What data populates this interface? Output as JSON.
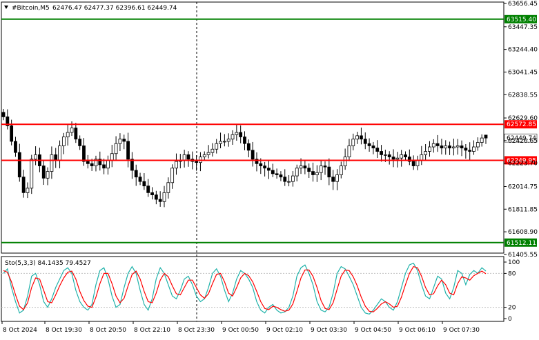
{
  "header": {
    "arrow_icon": "triangle-down-icon",
    "symbol": "#Bitcoin,M5",
    "ohlc": "62476.47 62477.37 62396.61 62449.74"
  },
  "price_axis": {
    "ticks": [
      "63656.45",
      "63447.35",
      "63244.40",
      "63041.45",
      "62838.55",
      "62629.60",
      "62426.65",
      "62223.70",
      "62014.75",
      "61811.85",
      "61608.90",
      "61405.55"
    ]
  },
  "levels": [
    {
      "name": "resistance-upper",
      "price": "63515.40",
      "color": "#008000"
    },
    {
      "name": "resistance",
      "price": "62572.85",
      "color": "#ff0000"
    },
    {
      "name": "support",
      "price": "62249.95",
      "color": "#ff0000"
    },
    {
      "name": "support-lower",
      "price": "61512.11",
      "color": "#008000"
    }
  ],
  "current_price": "62449.74",
  "stochastic": {
    "label": "Sto(5,3,3) 84.1435 79.4527",
    "ticks": [
      "100",
      "80",
      "20",
      "0"
    ],
    "main_color": "#20b2aa",
    "signal_color": "#ff0000"
  },
  "time_axis": {
    "ticks": [
      "8 Oct 2024",
      "8 Oct 19:30",
      "8 Oct 20:50",
      "8 Oct 22:10",
      "8 Oct 23:30",
      "9 Oct 00:50",
      "9 Oct 02:10",
      "9 Oct 03:30",
      "9 Oct 04:50",
      "9 Oct 06:10",
      "9 Oct 07:30"
    ]
  },
  "chart_data": {
    "type": "candlestick",
    "symbol": "#Bitcoin",
    "timeframe": "M5",
    "ylim": [
      61405.55,
      63656.45
    ],
    "last_candle": {
      "open": 62476.47,
      "high": 62477.37,
      "low": 62396.61,
      "close": 62449.74
    },
    "horizontal_levels": [
      63515.4,
      62572.85,
      62249.95,
      61512.11
    ],
    "close_series": [
      62640,
      62560,
      62420,
      62320,
      62100,
      61960,
      62000,
      62260,
      62300,
      62200,
      62090,
      62150,
      62300,
      62250,
      62380,
      62460,
      62500,
      62540,
      62440,
      62380,
      62240,
      62220,
      62200,
      62260,
      62210,
      62180,
      62250,
      62310,
      62400,
      62440,
      62420,
      62260,
      62160,
      62100,
      62060,
      62020,
      61960,
      61940,
      61900,
      61880,
      61960,
      62050,
      62180,
      62240,
      62250,
      62300,
      62260,
      62240,
      62230,
      62280,
      62300,
      62320,
      62350,
      62400,
      62420,
      62420,
      62440,
      62480,
      62500,
      62460,
      62400,
      62340,
      62260,
      62220,
      62200,
      62180,
      62160,
      62130,
      62120,
      62100,
      62060,
      62060,
      62110,
      62180,
      62200,
      62180,
      62150,
      62120,
      62140,
      62200,
      62190,
      62100,
      62060,
      62120,
      62200,
      62280,
      62380,
      62440,
      62470,
      62440,
      62400,
      62380,
      62360,
      62330,
      62300,
      62300,
      62280,
      62260,
      62270,
      62300,
      62280,
      62240,
      62200,
      62250,
      62300,
      62330,
      62370,
      62400,
      62380,
      62360,
      62380,
      62360,
      62370,
      62380,
      62360,
      62340,
      62330,
      62370,
      62410,
      62450,
      62449.74
    ],
    "stochastic": {
      "ylim": [
        0,
        100
      ],
      "levels": [
        20,
        80
      ],
      "main_last": 84.1435,
      "signal_last": 79.4527,
      "main": [
        80,
        88,
        55,
        30,
        10,
        15,
        40,
        75,
        80,
        60,
        30,
        20,
        35,
        55,
        70,
        85,
        90,
        80,
        50,
        30,
        20,
        15,
        25,
        60,
        85,
        90,
        70,
        40,
        20,
        25,
        55,
        80,
        92,
        80,
        50,
        25,
        15,
        35,
        70,
        90,
        80,
        60,
        40,
        35,
        50,
        70,
        75,
        60,
        40,
        30,
        35,
        55,
        80,
        88,
        75,
        50,
        30,
        45,
        70,
        85,
        80,
        70,
        55,
        30,
        15,
        10,
        20,
        25,
        15,
        10,
        12,
        20,
        40,
        75,
        90,
        95,
        80,
        60,
        30,
        15,
        12,
        20,
        45,
        80,
        92,
        88,
        75,
        60,
        40,
        20,
        10,
        8,
        15,
        25,
        35,
        30,
        20,
        15,
        30,
        55,
        80,
        95,
        98,
        85,
        60,
        40,
        35,
        55,
        75,
        70,
        45,
        35,
        55,
        85,
        80,
        60,
        78,
        85,
        80,
        90,
        84.14
      ],
      "signal": [
        85,
        82,
        65,
        42,
        22,
        16,
        28,
        55,
        72,
        70,
        50,
        30,
        28,
        42,
        58,
        72,
        82,
        84,
        70,
        48,
        32,
        22,
        20,
        38,
        62,
        80,
        80,
        62,
        40,
        28,
        36,
        58,
        78,
        84,
        70,
        48,
        30,
        28,
        45,
        68,
        80,
        74,
        58,
        44,
        42,
        55,
        68,
        68,
        55,
        42,
        36,
        44,
        62,
        78,
        80,
        65,
        45,
        40,
        55,
        72,
        80,
        76,
        65,
        48,
        30,
        18,
        16,
        22,
        20,
        16,
        13,
        15,
        26,
        48,
        72,
        86,
        86,
        75,
        55,
        32,
        18,
        16,
        28,
        52,
        75,
        86,
        85,
        74,
        58,
        38,
        22,
        13,
        12,
        18,
        26,
        30,
        26,
        20,
        22,
        38,
        60,
        80,
        92,
        90,
        75,
        55,
        42,
        44,
        58,
        68,
        60,
        45,
        42,
        62,
        74,
        72,
        68,
        76,
        80,
        84,
        79.45
      ]
    }
  }
}
